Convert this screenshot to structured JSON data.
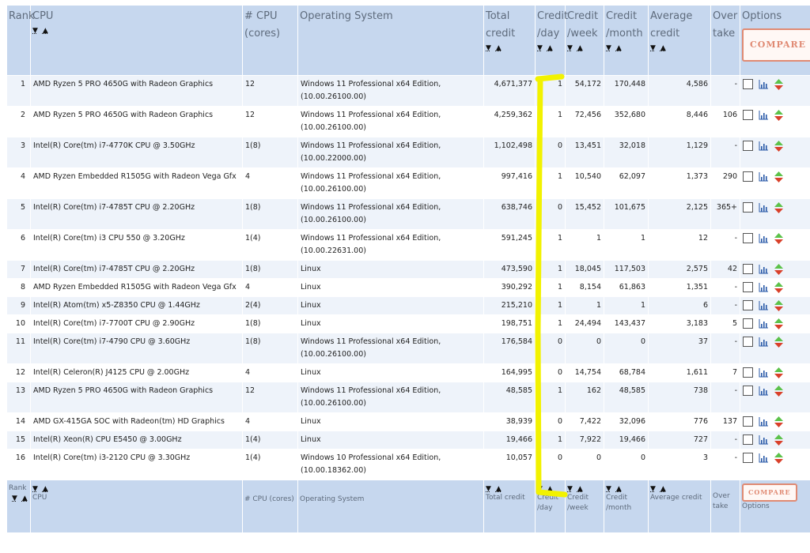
{
  "header": {
    "rank": "Rank",
    "cpu": "CPU",
    "cores": "# CPU (cores)",
    "os": "Operating System",
    "total_credit": "Total credit",
    "credit_day": "Credit /day",
    "credit_week": "Credit /week",
    "credit_month": "Credit /month",
    "avg_credit": "Average credit",
    "overtake": "Over take",
    "options": "Options",
    "compare": "COMPARE"
  },
  "footer": {
    "rank": "Rank",
    "cpu": "CPU",
    "cores": "# CPU (cores)",
    "os": "Operating System",
    "total_credit": "Total credit",
    "credit_day": "Credit /day",
    "credit_week": "Credit /week",
    "credit_month": "Credit /month",
    "avg_credit": "Average credit",
    "overtake": "Over take",
    "options": "Options",
    "compare": "COMPARE"
  },
  "sort_icons": {
    "down": "▼",
    "up": "▲"
  },
  "rows": [
    {
      "rank": "1",
      "cpu": "AMD Ryzen 5 PRO 4650G with Radeon Graphics",
      "cores": "12",
      "os": "Windows 11 Professional x64 Edition, (10.00.26100.00)",
      "total": "4,671,377",
      "day": "1",
      "week": "54,172",
      "month": "170,448",
      "avg": "4,586",
      "overtake": "-"
    },
    {
      "rank": "2",
      "cpu": "AMD Ryzen 5 PRO 4650G with Radeon Graphics",
      "cores": "12",
      "os": "Windows 11 Professional x64 Edition, (10.00.26100.00)",
      "total": "4,259,362",
      "day": "1",
      "week": "72,456",
      "month": "352,680",
      "avg": "8,446",
      "overtake": "106"
    },
    {
      "rank": "3",
      "cpu": "Intel(R) Core(tm) i7-4770K CPU @ 3.50GHz",
      "cores": "1(8)",
      "os": "Windows 11 Professional x64 Edition, (10.00.22000.00)",
      "total": "1,102,498",
      "day": "0",
      "week": "13,451",
      "month": "32,018",
      "avg": "1,129",
      "overtake": "-"
    },
    {
      "rank": "4",
      "cpu": "AMD Ryzen Embedded R1505G with Radeon Vega Gfx",
      "cores": "4",
      "os": "Windows 11 Professional x64 Edition, (10.00.26100.00)",
      "total": "997,416",
      "day": "1",
      "week": "10,540",
      "month": "62,097",
      "avg": "1,373",
      "overtake": "290"
    },
    {
      "rank": "5",
      "cpu": "Intel(R) Core(tm) i7-4785T CPU @ 2.20GHz",
      "cores": "1(8)",
      "os": "Windows 11 Professional x64 Edition, (10.00.26100.00)",
      "total": "638,746",
      "day": "0",
      "week": "15,452",
      "month": "101,675",
      "avg": "2,125",
      "overtake": "365+"
    },
    {
      "rank": "6",
      "cpu": "Intel(R) Core(tm) i3 CPU 550 @ 3.20GHz",
      "cores": "1(4)",
      "os": "Windows 11 Professional x64 Edition, (10.00.22631.00)",
      "total": "591,245",
      "day": "1",
      "week": "1",
      "month": "1",
      "avg": "12",
      "overtake": "-"
    },
    {
      "rank": "7",
      "cpu": "Intel(R) Core(tm) i7-4785T CPU @ 2.20GHz",
      "cores": "1(8)",
      "os": "Linux",
      "total": "473,590",
      "day": "1",
      "week": "18,045",
      "month": "117,503",
      "avg": "2,575",
      "overtake": "42"
    },
    {
      "rank": "8",
      "cpu": "AMD Ryzen Embedded R1505G with Radeon Vega Gfx",
      "cores": "4",
      "os": "Linux",
      "total": "390,292",
      "day": "1",
      "week": "8,154",
      "month": "61,863",
      "avg": "1,351",
      "overtake": "-"
    },
    {
      "rank": "9",
      "cpu": "Intel(R) Atom(tm) x5-Z8350 CPU @ 1.44GHz",
      "cores": "2(4)",
      "os": "Linux",
      "total": "215,210",
      "day": "1",
      "week": "1",
      "month": "1",
      "avg": "6",
      "overtake": "-"
    },
    {
      "rank": "10",
      "cpu": "Intel(R) Core(tm) i7-7700T CPU @ 2.90GHz",
      "cores": "1(8)",
      "os": "Linux",
      "total": "198,751",
      "day": "1",
      "week": "24,494",
      "month": "143,437",
      "avg": "3,183",
      "overtake": "5"
    },
    {
      "rank": "11",
      "cpu": "Intel(R) Core(tm) i7-4790 CPU @ 3.60GHz",
      "cores": "1(8)",
      "os": "Windows 11 Professional x64 Edition, (10.00.26100.00)",
      "total": "176,584",
      "day": "0",
      "week": "0",
      "month": "0",
      "avg": "37",
      "overtake": "-"
    },
    {
      "rank": "12",
      "cpu": "Intel(R) Celeron(R) J4125 CPU @ 2.00GHz",
      "cores": "4",
      "os": "Linux",
      "total": "164,995",
      "day": "0",
      "week": "14,754",
      "month": "68,784",
      "avg": "1,611",
      "overtake": "7"
    },
    {
      "rank": "13",
      "cpu": "AMD Ryzen 5 PRO 4650G with Radeon Graphics",
      "cores": "12",
      "os": "Windows 11 Professional x64 Edition, (10.00.26100.00)",
      "total": "48,585",
      "day": "1",
      "week": "162",
      "month": "48,585",
      "avg": "738",
      "overtake": "-"
    },
    {
      "rank": "14",
      "cpu": "AMD GX-415GA SOC with Radeon(tm) HD Graphics",
      "cores": "4",
      "os": "Linux",
      "total": "38,939",
      "day": "0",
      "week": "7,422",
      "month": "32,096",
      "avg": "776",
      "overtake": "137"
    },
    {
      "rank": "15",
      "cpu": "Intel(R) Xeon(R) CPU E5450 @ 3.00GHz",
      "cores": "1(4)",
      "os": "Linux",
      "total": "19,466",
      "day": "1",
      "week": "7,922",
      "month": "19,466",
      "avg": "727",
      "overtake": "-"
    },
    {
      "rank": "16",
      "cpu": "Intel(R) Core(tm) i3-2120 CPU @ 3.30GHz",
      "cores": "1(4)",
      "os": "Windows 10 Professional x64 Edition, (10.00.18362.00)",
      "total": "10,057",
      "day": "0",
      "week": "0",
      "month": "0",
      "avg": "3",
      "overtake": "-"
    }
  ],
  "colors": {
    "header_bg": "#c6d7ee",
    "header_text": "#5e6b7c",
    "row_alt_bg": "#eef3fa",
    "compare_border": "#e08a73",
    "arrow_up": "#5cc24a",
    "arrow_down": "#d9402a",
    "highlight": "#f2f200"
  },
  "icons": {
    "checkbox": "checkbox-icon",
    "chart": "bar-chart-icon",
    "updown": "up-down-arrows-icon"
  }
}
